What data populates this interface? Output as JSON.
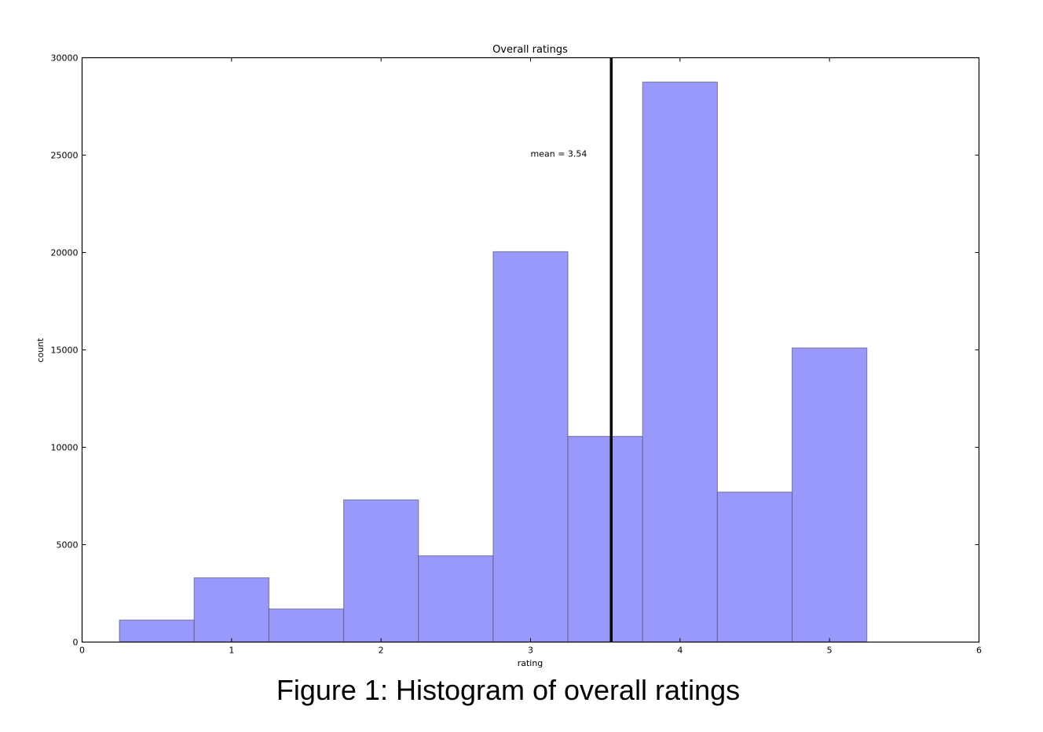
{
  "chart_data": {
    "type": "bar",
    "title": "Overall ratings",
    "xlabel": "rating",
    "ylabel": "count",
    "xlim": [
      0,
      6
    ],
    "ylim": [
      0,
      30000
    ],
    "xticks": [
      "0",
      "1",
      "2",
      "3",
      "4",
      "5",
      "6"
    ],
    "yticks": [
      "0",
      "5000",
      "10000",
      "15000",
      "20000",
      "25000",
      "30000"
    ],
    "grid": false,
    "bins": [
      {
        "left": 0.25,
        "right": 0.75,
        "count": 1130
      },
      {
        "left": 0.75,
        "right": 1.25,
        "count": 3300
      },
      {
        "left": 1.25,
        "right": 1.75,
        "count": 1700
      },
      {
        "left": 1.75,
        "right": 2.25,
        "count": 7300
      },
      {
        "left": 2.25,
        "right": 2.75,
        "count": 4430
      },
      {
        "left": 2.75,
        "right": 3.25,
        "count": 20040
      },
      {
        "left": 3.25,
        "right": 3.75,
        "count": 10560
      },
      {
        "left": 3.75,
        "right": 4.25,
        "count": 28750
      },
      {
        "left": 4.25,
        "right": 4.75,
        "count": 7700
      },
      {
        "left": 4.75,
        "right": 5.25,
        "count": 15100
      }
    ],
    "categories": [
      "0.5",
      "1.0",
      "1.5",
      "2.0",
      "2.5",
      "3.0",
      "3.5",
      "4.0",
      "4.5",
      "5.0"
    ],
    "values": [
      1130,
      3300,
      1700,
      7300,
      4430,
      20040,
      10560,
      28750,
      7700,
      15100
    ],
    "mean_line": {
      "x": 3.54,
      "label": "mean = 3.54",
      "label_x": 3.0,
      "label_y": 25000
    },
    "colors": {
      "bar_fill": "#9999fb",
      "bar_edge": "#55557a",
      "mean_line": "#000000"
    }
  },
  "caption": "Figure 1: Histogram of overall ratings"
}
